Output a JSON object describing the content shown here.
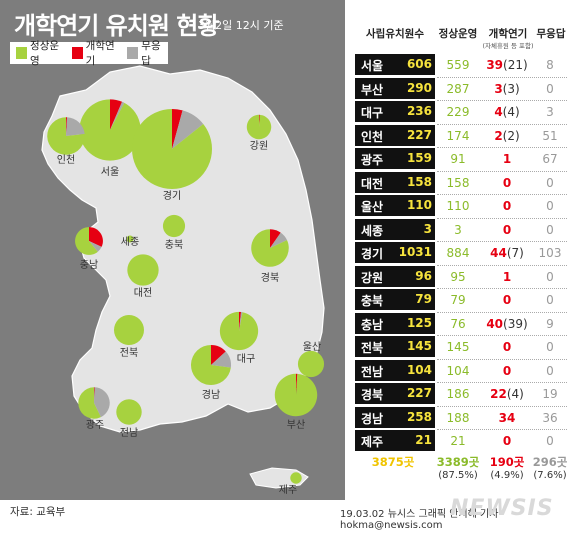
{
  "title": "개학연기 유치원 현황",
  "subtitle": "3월2일 12시 기준",
  "legend": [
    {
      "label": "정상운영",
      "color": "#a7d23f"
    },
    {
      "label": "개학연기",
      "color": "#e60012"
    },
    {
      "label": "무응답",
      "color": "#a9a9a9"
    }
  ],
  "table_headers": {
    "region": "사립유치원수",
    "normal": "정상운영",
    "delayed": "개학연기",
    "delayed_sub": "(자체휴원 등 포함)",
    "noresp": "무응답"
  },
  "totals": {
    "total": "3875곳",
    "normal": "3389곳",
    "normal_pct": "(87.5%)",
    "delayed": "190곳",
    "delayed_pct": "(4.9%)",
    "noresp": "296곳",
    "noresp_pct": "(7.6%)"
  },
  "source": "자료: 교육부",
  "credit": "19.03.02 뉴시스 그래픽 안지혜 기자 hokma@newsis.com",
  "watermark": "NEWSIS",
  "chart_data": {
    "type": "pie",
    "series_names": [
      "정상운영",
      "개학연기",
      "무응답"
    ],
    "colors": {
      "normal": "#a7d23f",
      "delayed": "#e60012",
      "noresp": "#a9a9a9"
    },
    "regions": [
      {
        "name": "서울",
        "total": 606,
        "normal": 559,
        "delayed": 39,
        "delayed_self": 21,
        "delayed_label": "39",
        "sub_label": "(21)",
        "noresp": 8
      },
      {
        "name": "부산",
        "total": 290,
        "normal": 287,
        "delayed": 3,
        "delayed_self": 3,
        "delayed_label": "3",
        "sub_label": "(3)",
        "noresp": 0
      },
      {
        "name": "대구",
        "total": 236,
        "normal": 229,
        "delayed": 4,
        "delayed_self": 4,
        "delayed_label": "4",
        "sub_label": "(4)",
        "noresp": 3
      },
      {
        "name": "인천",
        "total": 227,
        "normal": 174,
        "delayed": 2,
        "delayed_self": 2,
        "delayed_label": "2",
        "sub_label": "(2)",
        "noresp": 51
      },
      {
        "name": "광주",
        "total": 159,
        "normal": 91,
        "delayed": 1,
        "delayed_label": "1",
        "sub_label": "",
        "noresp": 67
      },
      {
        "name": "대전",
        "total": 158,
        "normal": 158,
        "delayed": 0,
        "delayed_label": "0",
        "sub_label": "",
        "noresp": 0
      },
      {
        "name": "울산",
        "total": 110,
        "normal": 110,
        "delayed": 0,
        "delayed_label": "0",
        "sub_label": "",
        "noresp": 0
      },
      {
        "name": "세종",
        "total": 3,
        "normal": 3,
        "delayed": 0,
        "delayed_label": "0",
        "sub_label": "",
        "noresp": 0
      },
      {
        "name": "경기",
        "total": 1031,
        "normal": 884,
        "delayed": 44,
        "delayed_self": 7,
        "delayed_label": "44",
        "sub_label": "(7)",
        "noresp": 103
      },
      {
        "name": "강원",
        "total": 96,
        "normal": 95,
        "delayed": 1,
        "delayed_label": "1",
        "sub_label": "",
        "noresp": 0
      },
      {
        "name": "충북",
        "total": 79,
        "normal": 79,
        "delayed": 0,
        "delayed_label": "0",
        "sub_label": "",
        "noresp": 0
      },
      {
        "name": "충남",
        "total": 125,
        "normal": 76,
        "delayed": 40,
        "delayed_self": 39,
        "delayed_label": "40",
        "sub_label": "(39)",
        "noresp": 9
      },
      {
        "name": "전북",
        "total": 145,
        "normal": 145,
        "delayed": 0,
        "delayed_label": "0",
        "sub_label": "",
        "noresp": 0
      },
      {
        "name": "전남",
        "total": 104,
        "normal": 104,
        "delayed": 0,
        "delayed_label": "0",
        "sub_label": "",
        "noresp": 0
      },
      {
        "name": "경북",
        "total": 227,
        "normal": 186,
        "delayed": 22,
        "delayed_self": 4,
        "delayed_label": "22",
        "sub_label": "(4)",
        "noresp": 19
      },
      {
        "name": "경남",
        "total": 258,
        "normal": 188,
        "delayed": 34,
        "delayed_label": "34",
        "sub_label": "",
        "noresp": 36
      },
      {
        "name": "제주",
        "total": 21,
        "normal": 21,
        "delayed": 0,
        "delayed_label": "0",
        "sub_label": "",
        "noresp": 0
      }
    ]
  }
}
